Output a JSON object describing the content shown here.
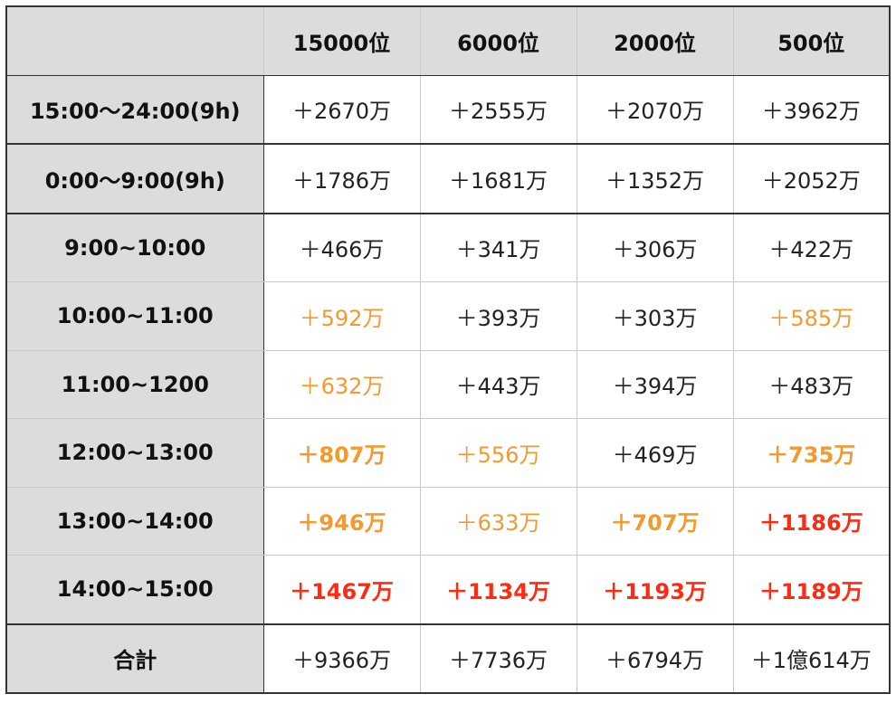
{
  "table": {
    "columns": [
      "",
      "15000位",
      "6000位",
      "2000位",
      "500位"
    ],
    "rows": [
      {
        "label": "15:00〜24:00(9h)",
        "cells": [
          {
            "text": "＋2670万",
            "style": "normal"
          },
          {
            "text": "＋2555万",
            "style": "normal"
          },
          {
            "text": "＋2070万",
            "style": "normal"
          },
          {
            "text": "＋3962万",
            "style": "normal"
          }
        ]
      },
      {
        "label": "0:00〜9:00(9h)",
        "cells": [
          {
            "text": "＋1786万",
            "style": "normal"
          },
          {
            "text": "＋1681万",
            "style": "normal"
          },
          {
            "text": "＋1352万",
            "style": "normal"
          },
          {
            "text": "＋2052万",
            "style": "normal"
          }
        ]
      },
      {
        "label": "9:00~10:00",
        "cells": [
          {
            "text": "＋466万",
            "style": "normal"
          },
          {
            "text": "＋341万",
            "style": "normal"
          },
          {
            "text": "＋306万",
            "style": "normal"
          },
          {
            "text": "＋422万",
            "style": "normal"
          }
        ]
      },
      {
        "label": "10:00~11:00",
        "cells": [
          {
            "text": "＋592万",
            "style": "orange"
          },
          {
            "text": "＋393万",
            "style": "normal"
          },
          {
            "text": "＋303万",
            "style": "normal"
          },
          {
            "text": "＋585万",
            "style": "orange"
          }
        ]
      },
      {
        "label": "11:00~1200",
        "cells": [
          {
            "text": "＋632万",
            "style": "orange"
          },
          {
            "text": "＋443万",
            "style": "normal"
          },
          {
            "text": "＋394万",
            "style": "normal"
          },
          {
            "text": "＋483万",
            "style": "normal"
          }
        ]
      },
      {
        "label": "12:00~13:00",
        "cells": [
          {
            "text": "＋807万",
            "style": "orange-bold"
          },
          {
            "text": "＋556万",
            "style": "orange"
          },
          {
            "text": "＋469万",
            "style": "normal"
          },
          {
            "text": "＋735万",
            "style": "orange-bold"
          }
        ]
      },
      {
        "label": "13:00~14:00",
        "cells": [
          {
            "text": "＋946万",
            "style": "orange-bold"
          },
          {
            "text": "＋633万",
            "style": "orange"
          },
          {
            "text": "＋707万",
            "style": "orange-bold"
          },
          {
            "text": "＋1186万",
            "style": "red-bold"
          }
        ]
      },
      {
        "label": "14:00~15:00",
        "cells": [
          {
            "text": "＋1467万",
            "style": "red-bold"
          },
          {
            "text": "＋1134万",
            "style": "red-bold"
          },
          {
            "text": "＋1193万",
            "style": "red-bold"
          },
          {
            "text": "＋1189万",
            "style": "red-bold"
          }
        ]
      },
      {
        "label": "合計",
        "cells": [
          {
            "text": "＋9366万",
            "style": "normal"
          },
          {
            "text": "＋7736万",
            "style": "normal"
          },
          {
            "text": "＋6794万",
            "style": "normal"
          },
          {
            "text": "＋1億614万",
            "style": "normal"
          }
        ]
      }
    ]
  },
  "colors": {
    "header_bg": "#dcdcdc",
    "orange": "#f39a2e",
    "red": "#ff2a12",
    "border": "#c9c9c9",
    "strong_border": "#333333"
  }
}
